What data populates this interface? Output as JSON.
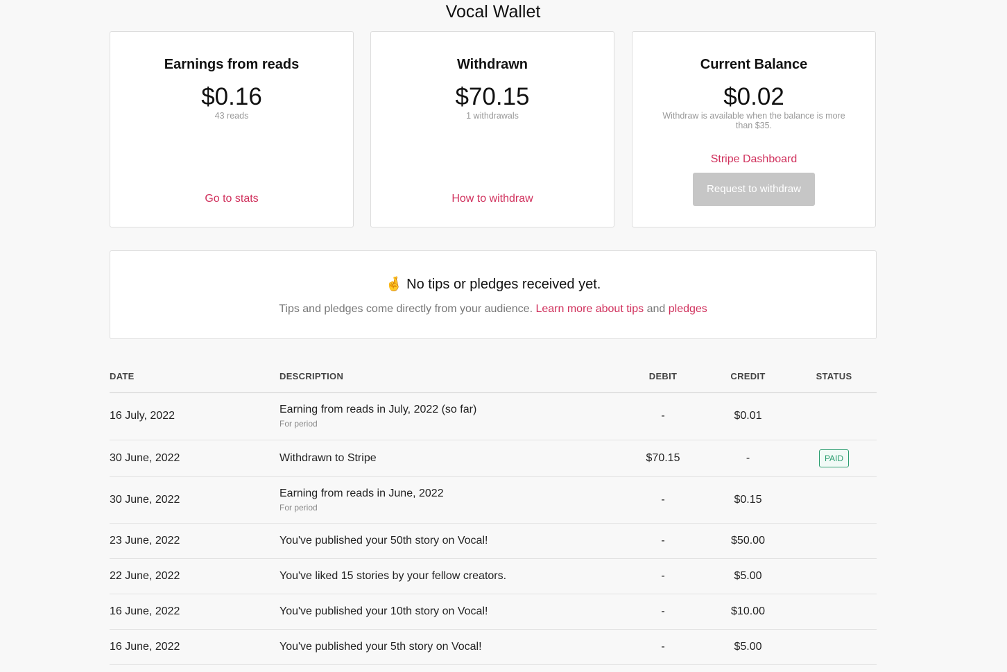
{
  "title": "Vocal Wallet",
  "cards": [
    {
      "heading": "Earnings from reads",
      "amount": "$0.16",
      "sub": "43 reads",
      "link": "Go to stats"
    },
    {
      "heading": "Withdrawn",
      "amount": "$70.15",
      "sub": "1 withdrawals",
      "link": "How to withdraw"
    },
    {
      "heading": "Current Balance",
      "amount": "$0.02",
      "sub": "Withdraw is available when the balance is more than $35.",
      "link": "Stripe Dashboard",
      "button": "Request to withdraw"
    }
  ],
  "tips": {
    "icon": "🤞",
    "heading": "No tips or pledges received yet.",
    "text": "Tips and pledges come directly from your audience.",
    "link1": "Learn more about tips",
    "and": "and",
    "link2": "pledges"
  },
  "table": {
    "headers": [
      "DATE",
      "DESCRIPTION",
      "DEBIT",
      "CREDIT",
      "STATUS"
    ],
    "rows": [
      {
        "date": "16 July, 2022",
        "desc": "Earning from reads in July, 2022 (so far)",
        "note": "For period",
        "debit": "-",
        "credit": "$0.01",
        "status": ""
      },
      {
        "date": "30 June, 2022",
        "desc": "Withdrawn to Stripe",
        "note": "",
        "debit": "$70.15",
        "credit": "-",
        "status": "PAID"
      },
      {
        "date": "30 June, 2022",
        "desc": "Earning from reads in June, 2022",
        "note": "For period",
        "debit": "-",
        "credit": "$0.15",
        "status": ""
      },
      {
        "date": "23 June, 2022",
        "desc": "You've published your 50th story on Vocal!",
        "note": "",
        "debit": "-",
        "credit": "$50.00",
        "status": ""
      },
      {
        "date": "22 June, 2022",
        "desc": "You've liked 15 stories by your fellow creators.",
        "note": "",
        "debit": "-",
        "credit": "$5.00",
        "status": ""
      },
      {
        "date": "16 June, 2022",
        "desc": "You've published your 10th story on Vocal!",
        "note": "",
        "debit": "-",
        "credit": "$10.00",
        "status": ""
      },
      {
        "date": "16 June, 2022",
        "desc": "You've published your 5th story on Vocal!",
        "note": "",
        "debit": "-",
        "credit": "$5.00",
        "status": ""
      }
    ]
  }
}
